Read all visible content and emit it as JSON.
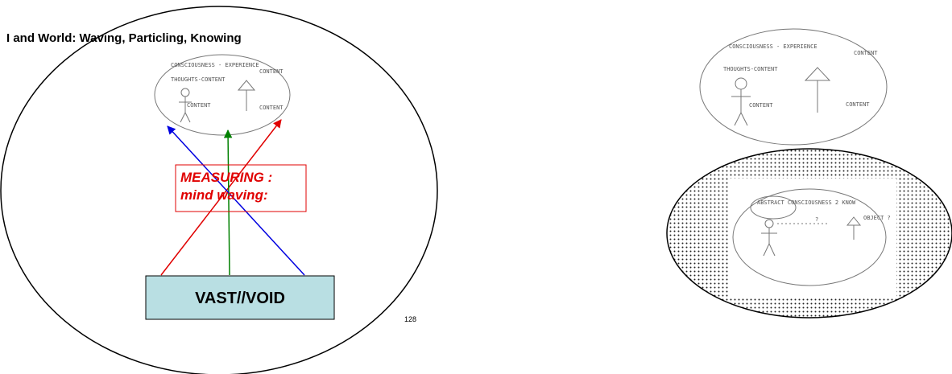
{
  "slide": {
    "title": "I and World: Waving, Particling, Knowing",
    "measuring_box": {
      "line1": "MEASURING :",
      "line2": "mind waving:"
    },
    "base_box": "VAST//VOID",
    "page_number": "128",
    "left_sketch": {
      "header": "CONSCIOUSNESS - EXPERIENCE",
      "thoughts": "THOUGHTS-CONTENT",
      "content_left": "CONTENT",
      "content_top": "CONTENT",
      "content_right": "CONTENT"
    },
    "right_sketch": {
      "header": "CONSCIOUSNESS - EXPERIENCE",
      "thoughts": "THOUGHTS-CONTENT",
      "content_left": "CONTENT",
      "content_top": "CONTENT",
      "content_right": "CONTENT"
    },
    "inner_sketch": {
      "bubble": "ABSTRACT CONSCIOUSNESS 2 KNOW",
      "question": "?",
      "object": "OBJECT ?"
    }
  }
}
